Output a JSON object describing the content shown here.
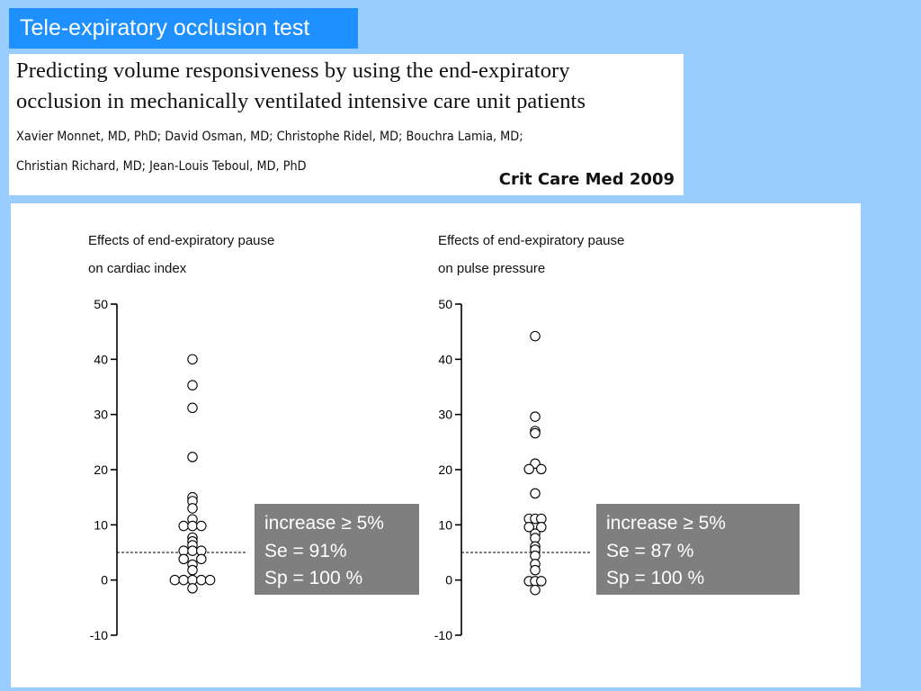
{
  "slide": {
    "title": "Tele-expiratory occlusion test"
  },
  "citation": {
    "title_line1": "Predicting volume responsiveness by using the end-expiratory",
    "title_line2": "occlusion in mechanically ventilated intensive care unit patients",
    "authors_line1": "Xavier Monnet, MD, PhD; David Osman, MD; Christophe Ridel, MD; Bouchra Lamia, MD;",
    "authors_line2": "Christian Richard, MD; Jean-Louis Teboul, MD, PhD",
    "journal": "Crit Care Med 2009"
  },
  "chart_data": [
    {
      "type": "scatter",
      "title_line1": "Effects of end-expiratory pause",
      "title_line2": "on cardiac index",
      "ylim": [
        -10,
        50
      ],
      "yticks": [
        50,
        40,
        30,
        20,
        10,
        0,
        -10
      ],
      "threshold": 5,
      "points": [
        {
          "x": 0,
          "y": 40
        },
        {
          "x": 0,
          "y": 35.3
        },
        {
          "x": 0,
          "y": 31.2
        },
        {
          "x": 0,
          "y": 22.3
        },
        {
          "x": 0,
          "y": 15
        },
        {
          "x": 0,
          "y": 14.3
        },
        {
          "x": 0,
          "y": 13
        },
        {
          "x": 0,
          "y": 11
        },
        {
          "x": -1,
          "y": 9.8
        },
        {
          "x": 0,
          "y": 9.8
        },
        {
          "x": 1,
          "y": 9.8
        },
        {
          "x": 0,
          "y": 7.7
        },
        {
          "x": 0,
          "y": 7
        },
        {
          "x": 0,
          "y": 6.3
        },
        {
          "x": -1,
          "y": 5.3
        },
        {
          "x": 0,
          "y": 5.3
        },
        {
          "x": 1,
          "y": 5.3
        },
        {
          "x": -1,
          "y": 3.8
        },
        {
          "x": 1,
          "y": 3.8
        },
        {
          "x": 0,
          "y": 2.8
        },
        {
          "x": 0,
          "y": 1.8
        },
        {
          "x": -2,
          "y": 0
        },
        {
          "x": -1,
          "y": 0
        },
        {
          "x": 0,
          "y": 0
        },
        {
          "x": 1,
          "y": 0
        },
        {
          "x": 2,
          "y": 0
        },
        {
          "x": 0,
          "y": -1.5
        }
      ],
      "stats": {
        "line1": "increase ≥ 5%",
        "line2": "Se = 91%",
        "line3": "Sp = 100 %"
      }
    },
    {
      "type": "scatter",
      "title_line1": "Effects of end-expiratory pause",
      "title_line2": "on pulse pressure",
      "ylim": [
        -10,
        50
      ],
      "yticks": [
        50,
        40,
        30,
        20,
        10,
        0,
        -10
      ],
      "threshold": 5,
      "points": [
        {
          "x": 0,
          "y": 44.2
        },
        {
          "x": 0,
          "y": 29.6
        },
        {
          "x": 0,
          "y": 27
        },
        {
          "x": 0,
          "y": 26.6
        },
        {
          "x": 0,
          "y": 21.1
        },
        {
          "x": -1,
          "y": 20.1
        },
        {
          "x": 1,
          "y": 20.1
        },
        {
          "x": 0,
          "y": 15.7
        },
        {
          "x": -1,
          "y": 11.1
        },
        {
          "x": 0,
          "y": 11.1
        },
        {
          "x": 1,
          "y": 11.1
        },
        {
          "x": -1,
          "y": 9.6
        },
        {
          "x": 1,
          "y": 9.6
        },
        {
          "x": 0,
          "y": 8.4
        },
        {
          "x": 0,
          "y": 7.6
        },
        {
          "x": 0,
          "y": 6.1
        },
        {
          "x": 0,
          "y": 5.5
        },
        {
          "x": 0,
          "y": 4.4
        },
        {
          "x": 0,
          "y": 2.9
        },
        {
          "x": 0,
          "y": 1.8
        },
        {
          "x": -1,
          "y": -0.2
        },
        {
          "x": 0,
          "y": -0.2
        },
        {
          "x": 1,
          "y": -0.2
        },
        {
          "x": 0,
          "y": -1.8
        }
      ],
      "stats": {
        "line1": "increase ≥ 5%",
        "line2": "Se = 87 %",
        "line3": "Sp = 100 %"
      }
    }
  ]
}
